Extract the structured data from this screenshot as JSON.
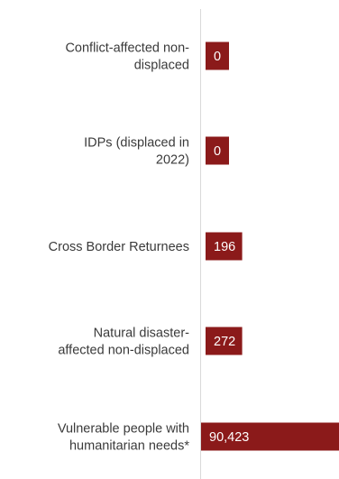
{
  "chart_data": {
    "type": "bar",
    "orientation": "horizontal",
    "categories": [
      [
        "Conflict-affected non-",
        "displaced"
      ],
      [
        "IDPs (displaced in",
        "2022)"
      ],
      [
        "Cross Border Returnees"
      ],
      [
        "Natural disaster-",
        "affected non-displaced"
      ],
      [
        "Vulnerable people with",
        "humanitarian needs*"
      ]
    ],
    "values": [
      0,
      0,
      196,
      272,
      90423
    ],
    "value_labels": [
      "0",
      "0",
      "196",
      "272",
      "90,423"
    ],
    "bar_color": "#8b1a1a",
    "axis_line_color": "#d9d9d9",
    "grid": false,
    "legend": "none"
  }
}
